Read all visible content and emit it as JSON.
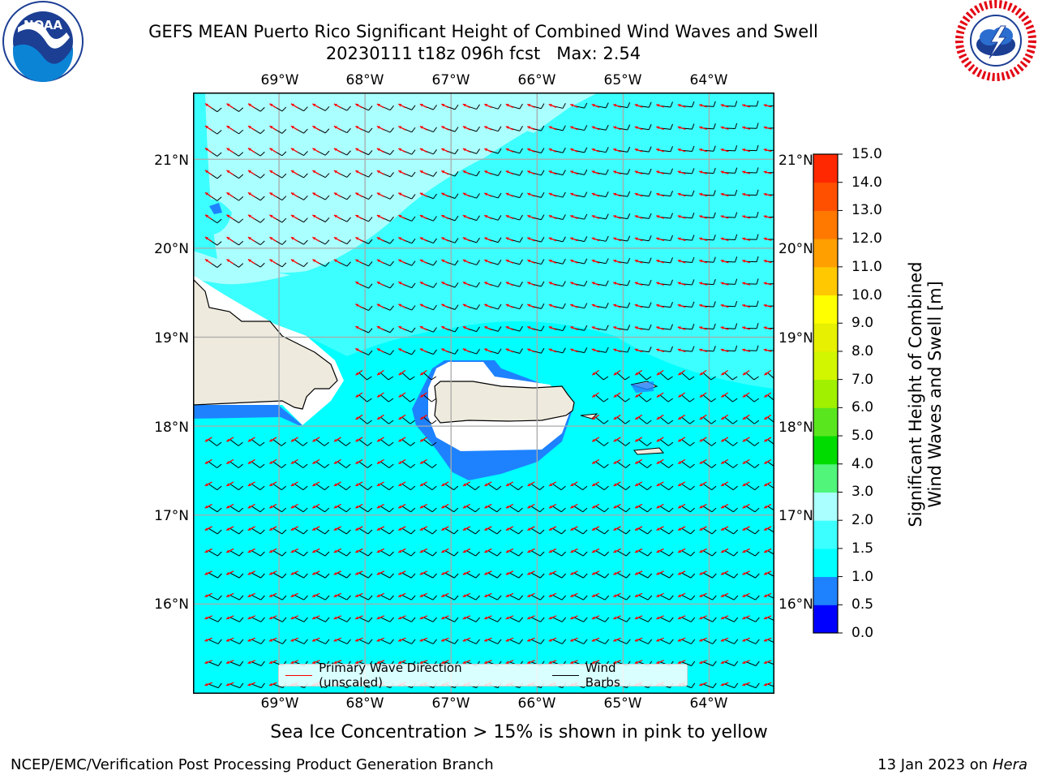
{
  "header": {
    "title_line1": "GEFS MEAN Puerto Rico Significant Height of Combined Wind Waves and Swell",
    "title_line2": "20230111 t18z 096h fcst   Max: 2.54"
  },
  "logos": {
    "noaa_text": "NOAA",
    "noaa_ring_text": "NATIONAL OCEANIC AND ATMOSPHERIC ADMINISTRATION · U.S. DEPARTMENT OF COMMERCE",
    "nws_ring_text": "NATIONAL WEATHER SERVICE"
  },
  "map": {
    "lon_labels": [
      "69°W",
      "68°W",
      "67°W",
      "66°W",
      "65°W",
      "64°W"
    ],
    "lat_labels": [
      "21°N",
      "20°N",
      "19°N",
      "18°N",
      "17°N",
      "16°N"
    ],
    "legend": {
      "wave_label": "Primary Wave Direction (unscaled)",
      "wind_label": "Wind Barbs",
      "wave_color": "#ff0000",
      "wind_color": "#000000"
    }
  },
  "colorbar": {
    "label_line1": "Significant Height of Combined",
    "label_line2": "Wind Waves and Swell [m]",
    "ticks": [
      "0.0",
      "0.5",
      "1.0",
      "1.5",
      "2.0",
      "3.0",
      "4.0",
      "5.0",
      "6.0",
      "7.0",
      "8.0",
      "9.0",
      "10.0",
      "11.0",
      "12.0",
      "13.0",
      "14.0",
      "15.0"
    ],
    "colors": [
      "#0000ff",
      "#1e82ff",
      "#00ffff",
      "#3cffff",
      "#aaffff",
      "#50f57a",
      "#00dc00",
      "#5ae61e",
      "#a0f000",
      "#d2f500",
      "#e6f000",
      "#ffff00",
      "#ffc800",
      "#ffa000",
      "#ff7800",
      "#ff5000",
      "#ff2800",
      "#ff0000"
    ]
  },
  "footer": {
    "sea_ice_note": "Sea Ice Concentration > 15% is shown in pink to yellow",
    "left": "NCEP/EMC/Verification Post Processing Product Generation Branch",
    "right_prefix": "13 Jan 2023 on ",
    "right_italic": "Hera"
  },
  "chart_data": {
    "type": "heatmap",
    "title": "GEFS MEAN Puerto Rico Significant Height of Combined Wind Waves and Swell",
    "subtitle": "20230111 t18z 096h fcst   Max: 2.54",
    "lon_range": [
      -70.0,
      -63.25
    ],
    "lat_range": [
      15.0,
      21.75
    ],
    "max_value": 2.54,
    "colorbar_levels": [
      0.0,
      0.5,
      1.0,
      1.5,
      2.0,
      3.0,
      4.0,
      5.0,
      6.0,
      7.0,
      8.0,
      9.0,
      10.0,
      11.0,
      12.0,
      13.0,
      14.0,
      15.0
    ],
    "colorbar_label": "Significant Height of Combined Wind Waves and Swell [m]",
    "grid": true,
    "legend_placement": "bottom-center"
  }
}
